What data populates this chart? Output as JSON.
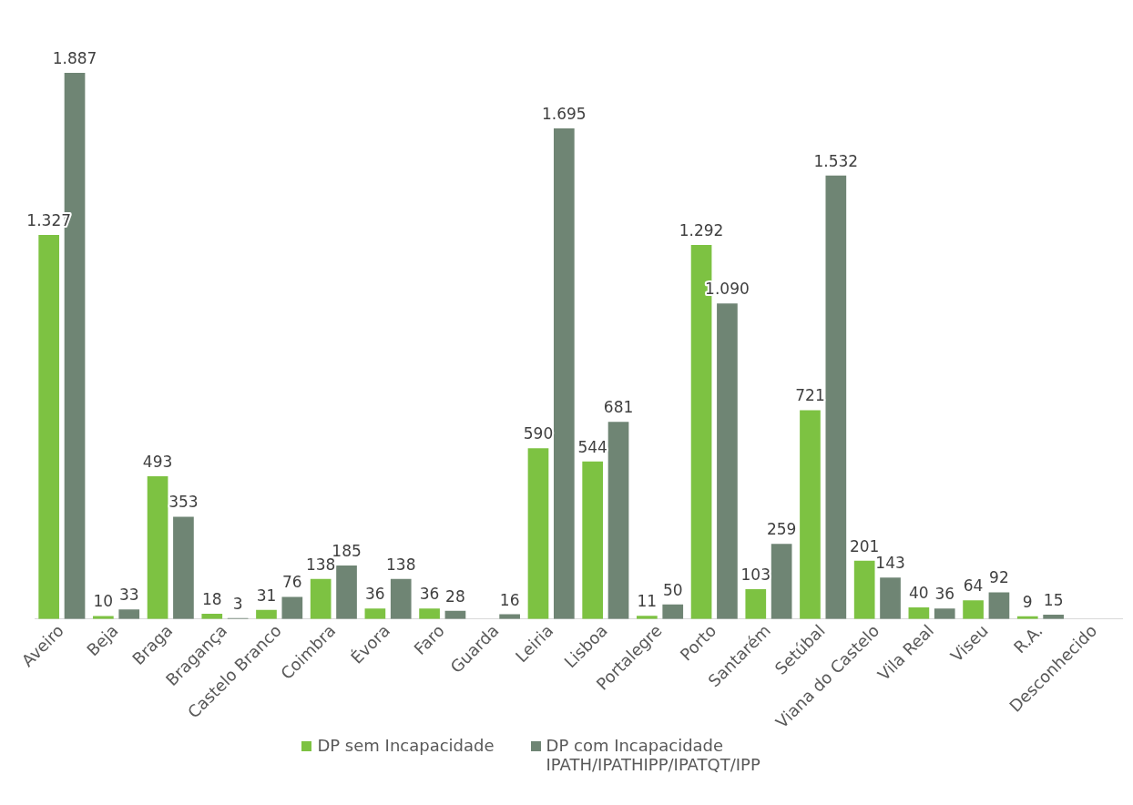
{
  "chart_data": {
    "type": "bar",
    "categories": [
      "Aveiro",
      "Beja",
      "Braga",
      "Bragança",
      "Castelo Branco",
      "Coimbra",
      "Évora",
      "Faro",
      "Guarda",
      "Leiria",
      "Lisboa",
      "Portalegre",
      "Porto",
      "Santarém",
      "Setúbal",
      "Viana do Castelo",
      "Vila Real",
      "Viseu",
      "R.A.",
      "Desconhecido"
    ],
    "series": [
      {
        "name": "DP sem Incapacidade",
        "color": "#7dc242",
        "values": [
          1327,
          10,
          493,
          18,
          31,
          138,
          36,
          36,
          null,
          590,
          544,
          11,
          1292,
          103,
          721,
          201,
          40,
          64,
          9,
          null
        ],
        "value_labels": [
          "1.327",
          "10",
          "493",
          "18",
          "31",
          "138",
          "36",
          "36",
          null,
          "590",
          "544",
          "11",
          "1.292",
          "103",
          "721",
          "201",
          "40",
          "64",
          "9",
          null
        ]
      },
      {
        "name": "DP com Incapacidade IPATH/IPATHIPP/IPATQT/IPP",
        "color": "#6f8574",
        "values": [
          1887,
          33,
          353,
          3,
          76,
          185,
          138,
          28,
          16,
          1695,
          681,
          50,
          1090,
          259,
          1532,
          143,
          36,
          92,
          15,
          null
        ],
        "value_labels": [
          "1.887",
          "33",
          "353",
          "3",
          "76",
          "185",
          "138",
          "28",
          "16",
          "1.695",
          "681",
          "50",
          "1.090",
          "259",
          "1.532",
          "143",
          "36",
          "92",
          "15",
          null
        ]
      }
    ],
    "tick_labels": "x",
    "grid": false,
    "legend": "bottom"
  }
}
